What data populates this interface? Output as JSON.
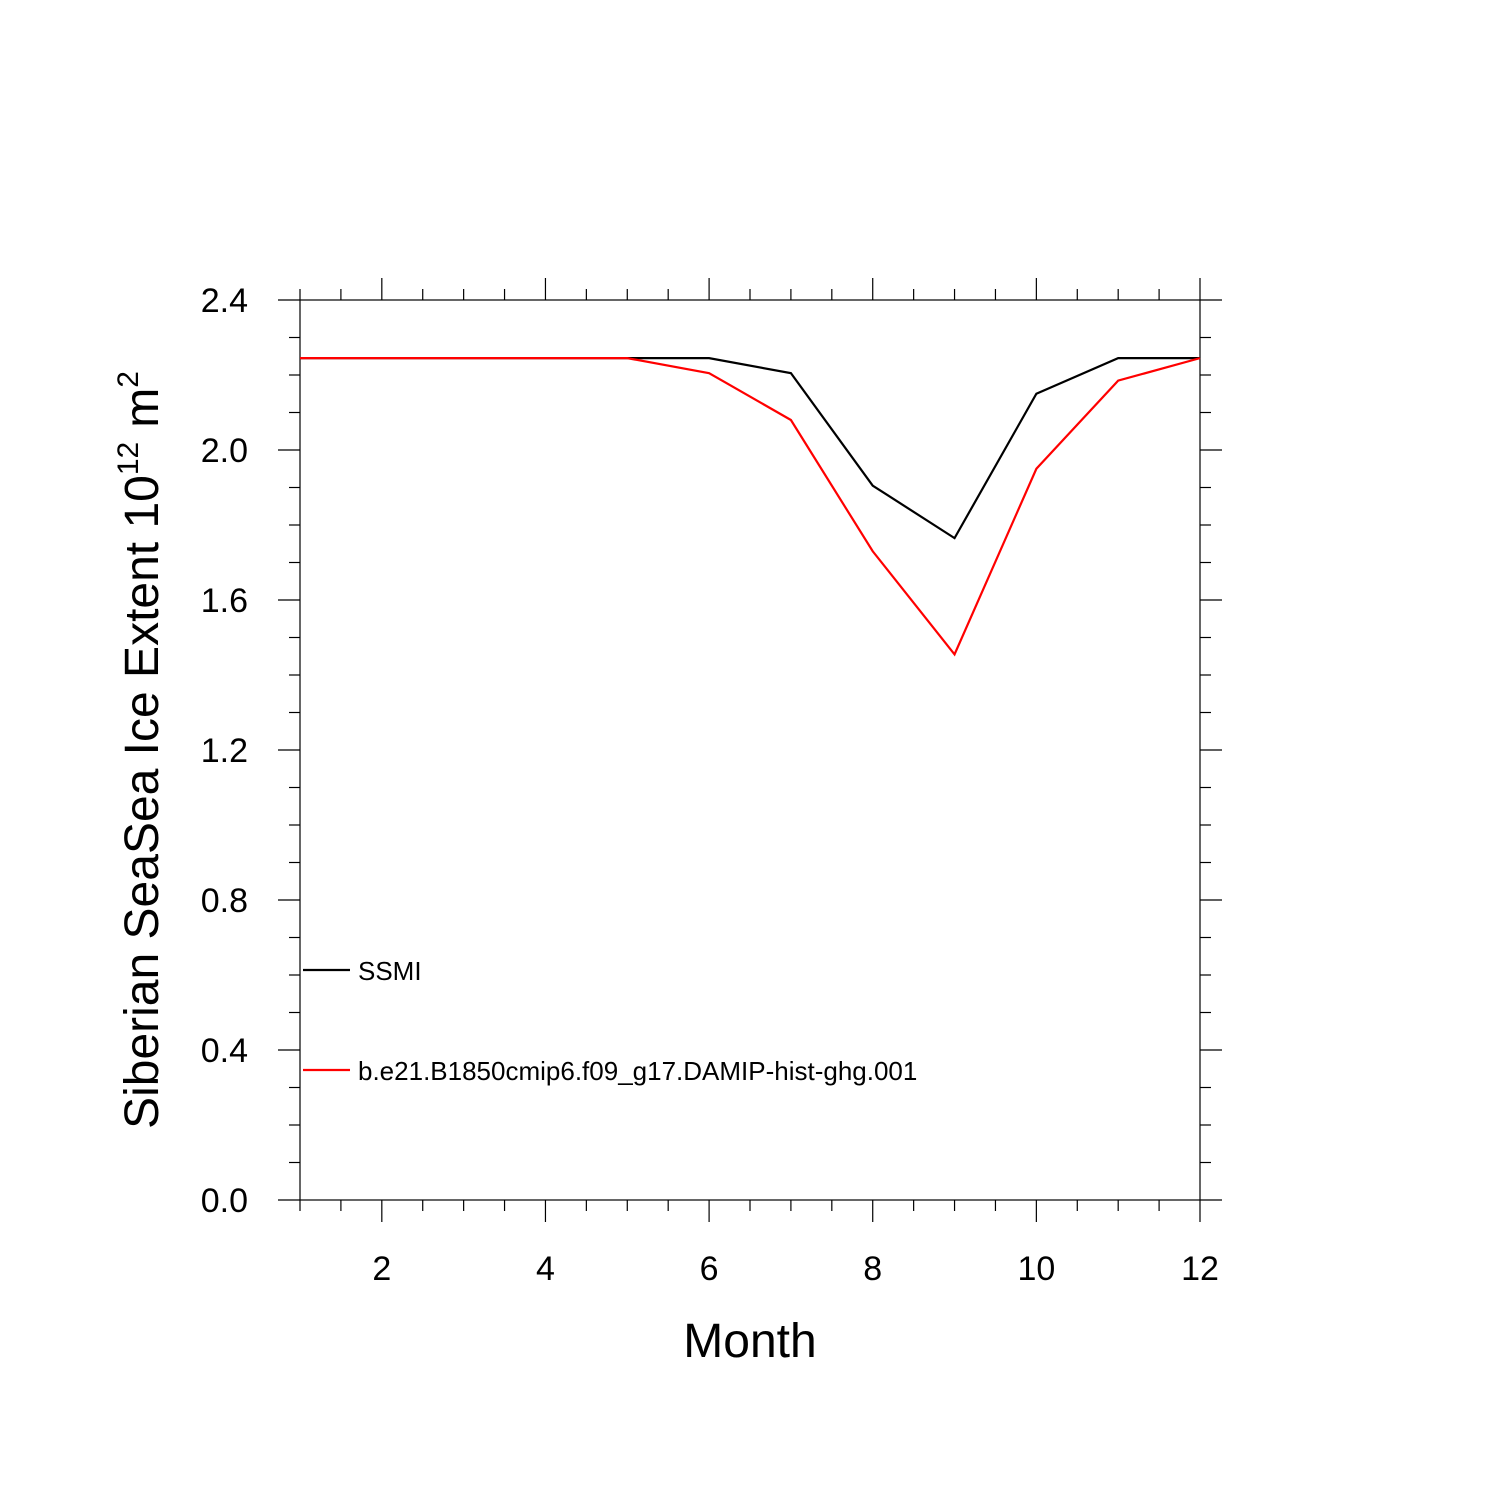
{
  "chart_data": {
    "type": "line",
    "xlabel": "Month",
    "ylabel": "Siberian SeaSea Ice Extent 10",
    "ylabel_superscript": "12",
    "ylabel_unit": "m",
    "ylabel_unit_superscript": "2",
    "xlim": [
      1,
      12
    ],
    "ylim": [
      0.0,
      2.4
    ],
    "x_major_ticks": [
      2,
      4,
      6,
      8,
      10,
      12
    ],
    "x_minor_step": 0.5,
    "y_major_ticks": [
      0.0,
      0.4,
      0.8,
      1.2,
      1.6,
      2.0,
      2.4
    ],
    "y_tick_labels": [
      "0.0",
      "0.4",
      "0.8",
      "1.2",
      "1.6",
      "2.0",
      "2.4"
    ],
    "y_minor_step": 0.1,
    "grid": false,
    "legend_position": "lower-left",
    "x": [
      1,
      2,
      3,
      4,
      5,
      6,
      7,
      8,
      9,
      10,
      11,
      12
    ],
    "series": [
      {
        "name": "SSMI",
        "color": "#000000",
        "values": [
          2.245,
          2.245,
          2.245,
          2.245,
          2.245,
          2.245,
          2.205,
          1.905,
          1.765,
          2.15,
          2.245,
          2.245
        ]
      },
      {
        "name": "b.e21.B1850cmip6.f09_g17.DAMIP-hist-ghg.001",
        "color": "#ff0000",
        "values": [
          2.245,
          2.245,
          2.245,
          2.245,
          2.245,
          2.205,
          2.08,
          1.73,
          1.455,
          1.95,
          2.185,
          2.245
        ]
      }
    ]
  }
}
